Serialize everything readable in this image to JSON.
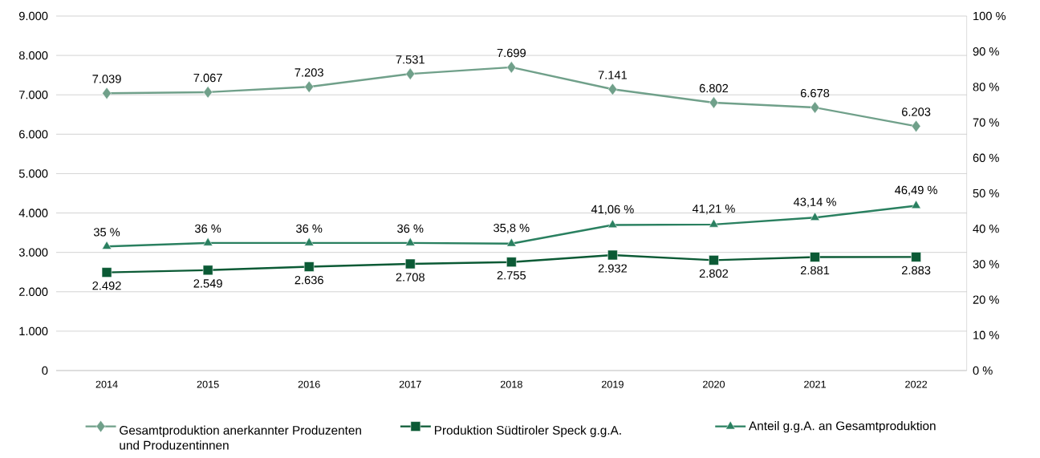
{
  "chart_data": {
    "type": "line",
    "categories": [
      "2014",
      "2015",
      "2016",
      "2017",
      "2018",
      "2019",
      "2020",
      "2021",
      "2022"
    ],
    "series": [
      {
        "name": "Gesamtproduktion anerkannter Produzenten und Produzentinnen",
        "color": "#70a08a",
        "marker": "diamond",
        "values": [
          7039,
          7067,
          7203,
          7531,
          7699,
          7141,
          6802,
          6678,
          6203
        ],
        "value_labels": [
          "7.039",
          "7.067",
          "7.203",
          "7.531",
          "7.699",
          "7.141",
          "6.802",
          "6.678",
          "6.203"
        ]
      },
      {
        "name": "Produktion Südtiroler Speck g.g.A.",
        "color": "#0b5a35",
        "marker": "square",
        "values": [
          2492,
          2549,
          2636,
          2708,
          2755,
          2932,
          2802,
          2881,
          2883
        ],
        "value_labels": [
          "2.492",
          "2.549",
          "2.636",
          "2.708",
          "2.755",
          "2.932",
          "2.802",
          "2.881",
          "2.883"
        ]
      },
      {
        "name": "Anteil g.g.A. an Gesamtproduktion",
        "color": "#2a8060",
        "marker": "triangle",
        "axis": "y2",
        "values": [
          35,
          36,
          36,
          36,
          35.8,
          41.06,
          41.21,
          43.14,
          46.49
        ],
        "value_labels": [
          "35 %",
          "36 %",
          "36 %",
          "36 %",
          "35,8 %",
          "41,06 %",
          "41,21 %",
          "43,14 %",
          "46,49 %"
        ]
      }
    ],
    "ylim": [
      0,
      9000
    ],
    "yticks": [
      0,
      {
        "value": 1000,
        "label": "1.000"
      },
      {
        "value": 2000,
        "label": "2.000"
      },
      {
        "value": 3000,
        "label": "3.000"
      },
      {
        "value": 4000,
        "label": "4.000"
      },
      {
        "value": 5000,
        "label": "5.000"
      },
      {
        "value": 6000,
        "label": "6.000"
      },
      {
        "value": 7000,
        "label": "7.000"
      },
      {
        "value": 8000,
        "label": "8.000"
      },
      {
        "value": 9000,
        "label": "9.000"
      }
    ],
    "y2lim": [
      0,
      100
    ],
    "y2ticks": [
      {
        "value": 0,
        "label": "0 %"
      },
      {
        "value": 10,
        "label": "10 %"
      },
      {
        "value": 20,
        "label": "20 %"
      },
      {
        "value": 30,
        "label": "30 %"
      },
      {
        "value": 40,
        "label": "40 %"
      },
      {
        "value": 50,
        "label": "50 %"
      },
      {
        "value": 60,
        "label": "60 %"
      },
      {
        "value": 70,
        "label": "70 %"
      },
      {
        "value": 80,
        "label": "80 %"
      },
      {
        "value": 90,
        "label": "90 %"
      },
      {
        "value": 100,
        "label": "100 %"
      }
    ],
    "grid": "y",
    "legend": "bottom",
    "line_style": "solid"
  }
}
